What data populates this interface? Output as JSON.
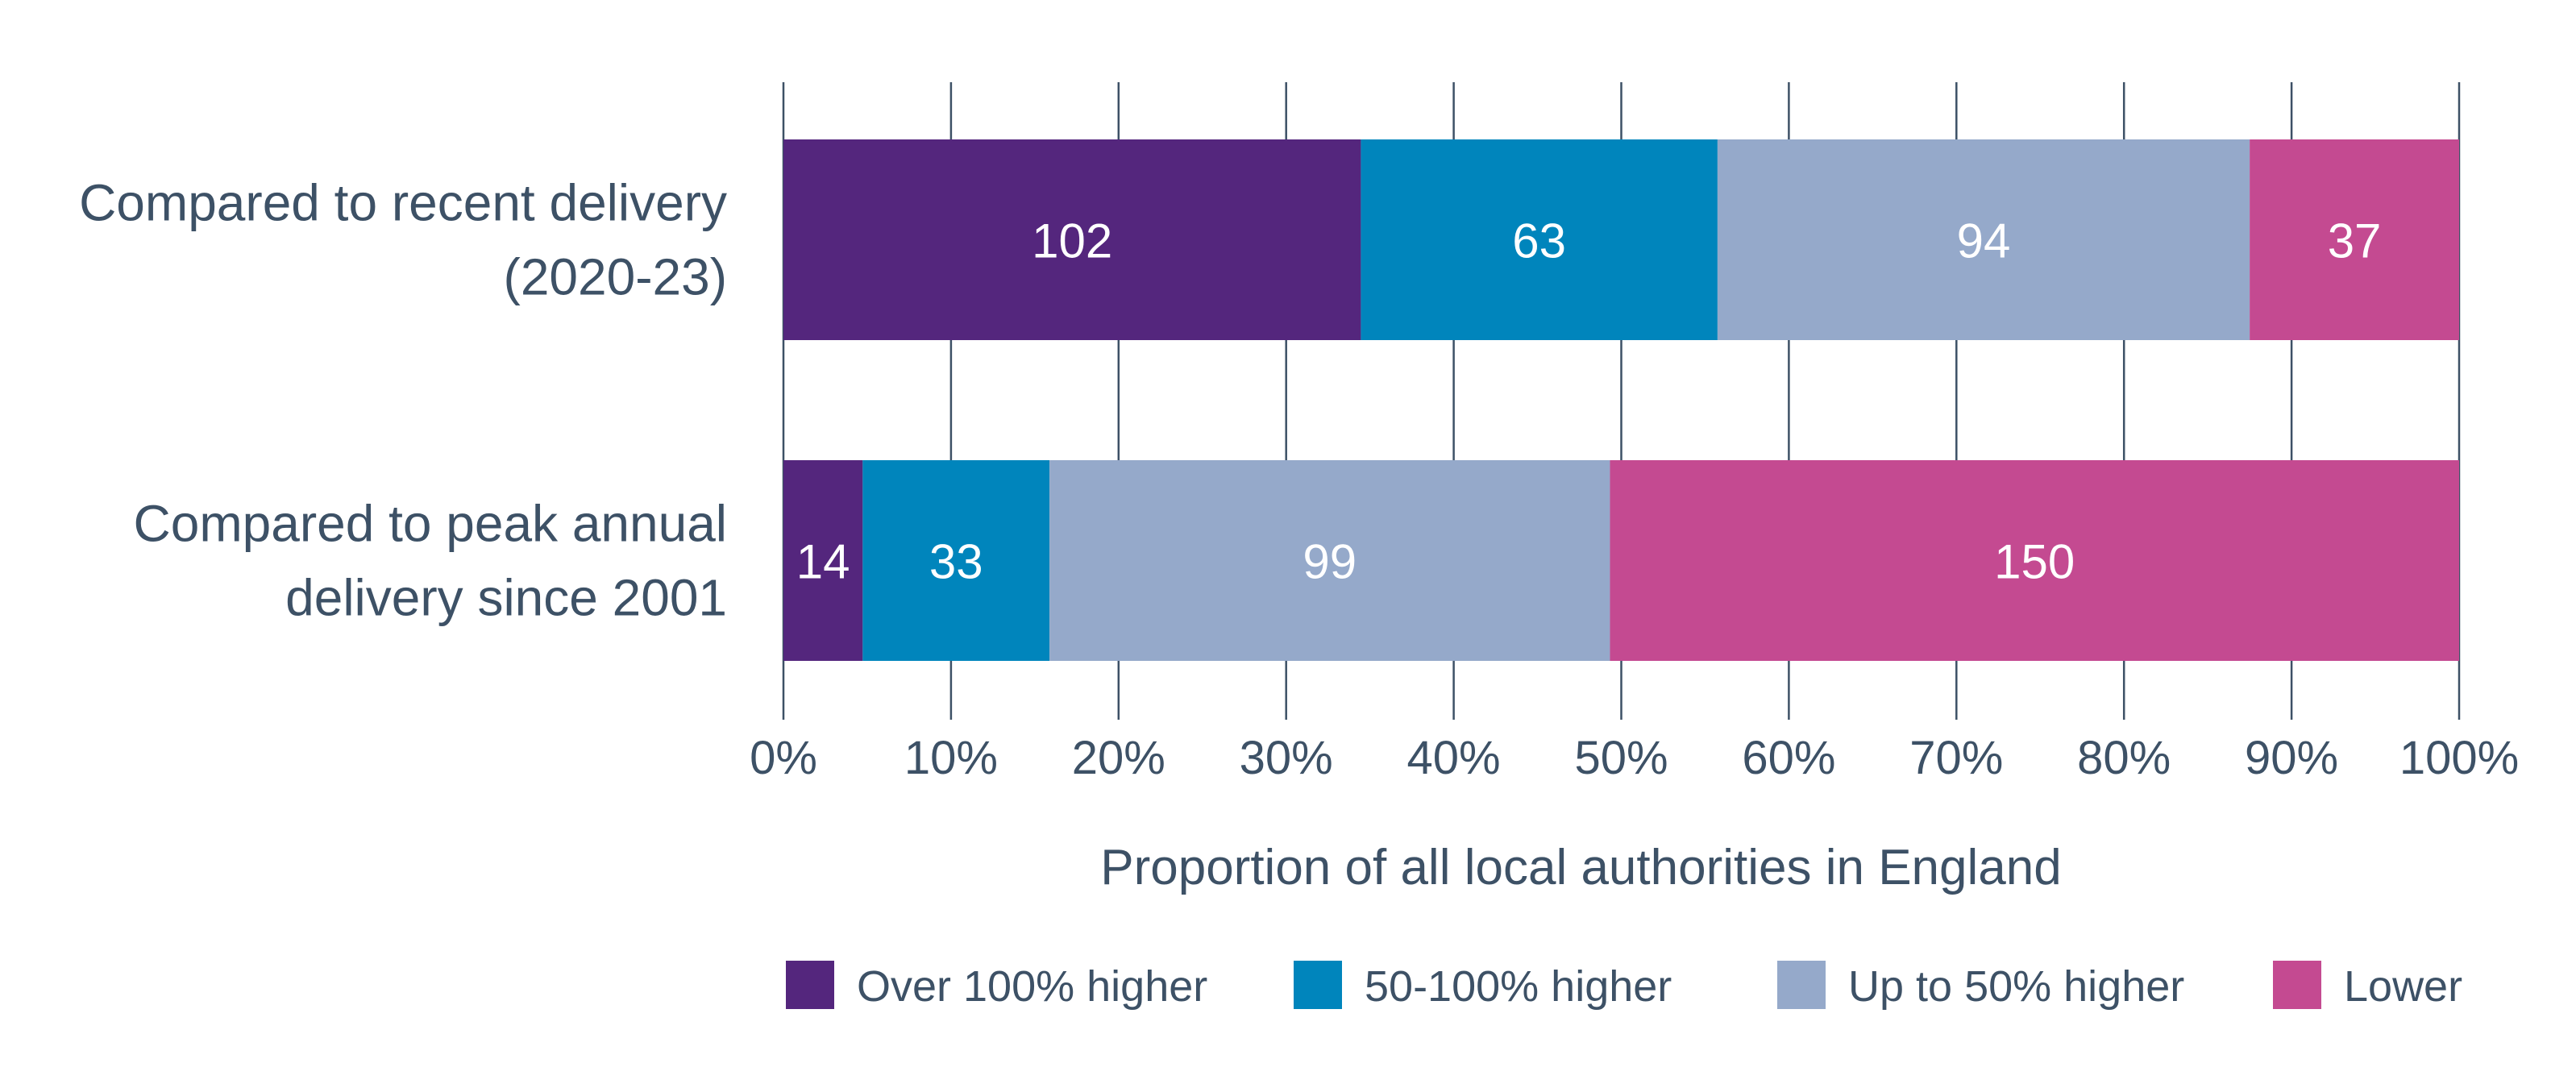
{
  "chart_data": {
    "type": "bar",
    "orientation": "horizontal",
    "stacked": "percent",
    "title": "",
    "categories": [
      "Compared to recent delivery (2020-23)",
      "Compared to peak annual delivery since 2001"
    ],
    "category_lines": [
      [
        "Compared to recent delivery",
        "(2020-23)"
      ],
      [
        "Compared to peak annual",
        "delivery since 2001"
      ]
    ],
    "series": [
      {
        "name": "Over 100% higher",
        "color": "#54267d",
        "values": [
          102,
          14
        ]
      },
      {
        "name": "50-100% higher",
        "color": "#0085bc",
        "values": [
          63,
          33
        ]
      },
      {
        "name": "Up to 50% higher",
        "color": "#95a9ca",
        "values": [
          94,
          99
        ]
      },
      {
        "name": "Lower",
        "color": "#c44a91",
        "values": [
          37,
          150
        ]
      }
    ],
    "xlabel": "Proportion of all local authorities in England",
    "ylabel": "",
    "xlim": [
      0,
      100
    ],
    "xticks": [
      "0%",
      "10%",
      "20%",
      "30%",
      "40%",
      "50%",
      "60%",
      "70%",
      "80%",
      "90%",
      "100%"
    ],
    "grid": true,
    "legend": "bottom",
    "text_color": "#3d5166"
  }
}
